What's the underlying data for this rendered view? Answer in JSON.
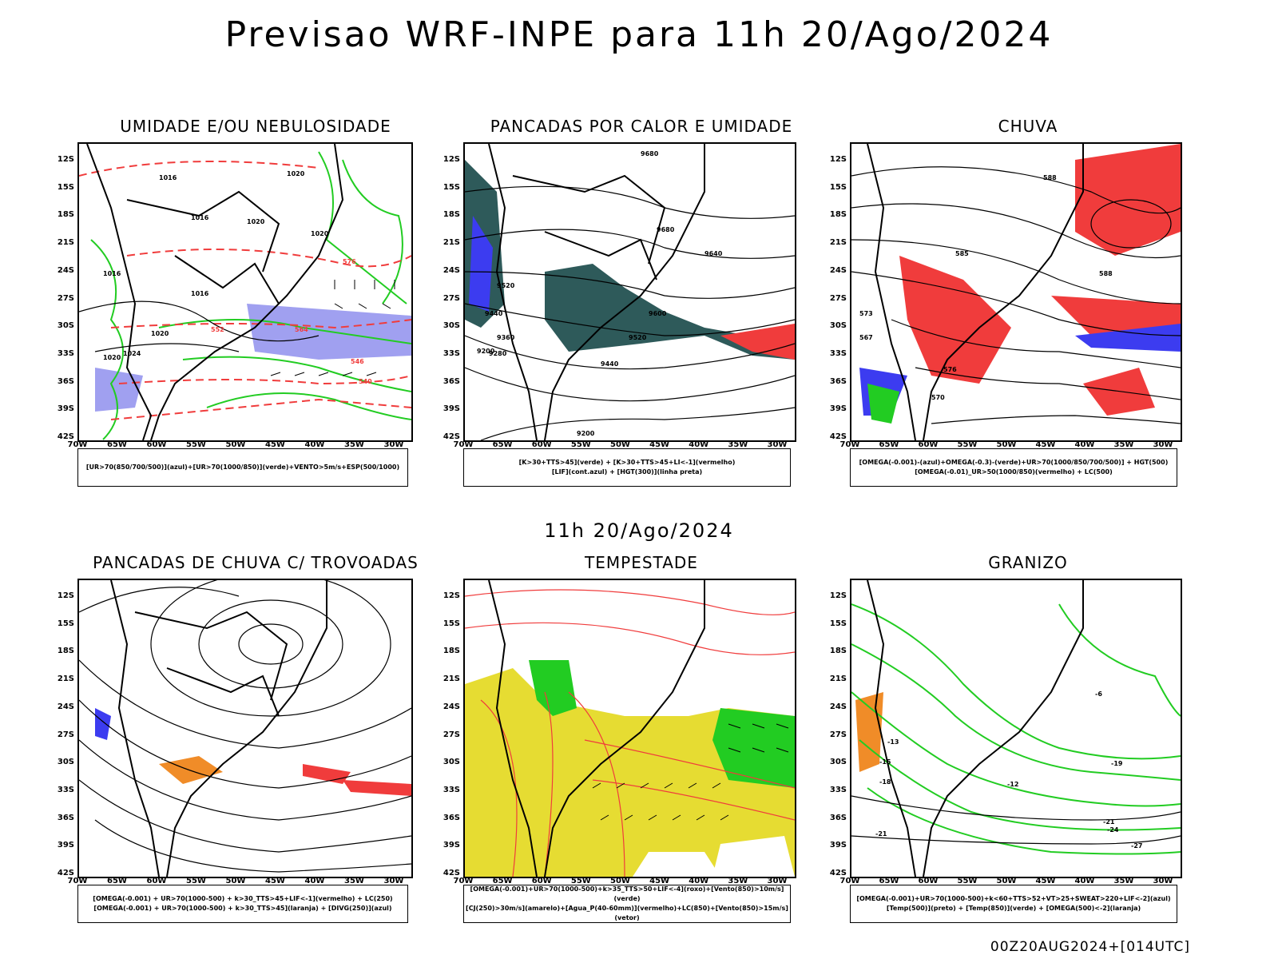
{
  "title": "Previsao WRF-INPE  para 11h 20/Ago/2024",
  "subtitle": "11h 20/Ago/2024",
  "footer": "00Z20AUG2024+[014UTC]",
  "lat_labels": [
    "12S",
    "15S",
    "18S",
    "21S",
    "24S",
    "27S",
    "30S",
    "33S",
    "36S",
    "39S",
    "42S"
  ],
  "lon_labels": [
    "70W",
    "65W",
    "60W",
    "55W",
    "50W",
    "45W",
    "40W",
    "35W",
    "30W"
  ],
  "panels": [
    {
      "title": "UMIDADE E/OU NEBULOSIDADE",
      "legend_1": "[UR>70(850/700/500)](azul)+[UR>70(1000/850)](verde)+VENTO>5m/s+ESP(500/1000)",
      "legend_2": ""
    },
    {
      "title": "PANCADAS POR CALOR E UMIDADE",
      "legend_1": "[K>30+TTS>45](verde) + [K>30+TTS>45+LI<-1](vermelho)",
      "legend_2": "[LIF](cont.azul) + [HGT(300)](linha preta)"
    },
    {
      "title": "CHUVA",
      "legend_1": "[OMEGA(-0.001)-(azul)+OMEGA(-0.3)-(verde)+UR>70(1000/850/700/500)] + HGT(500)",
      "legend_2": "[OMEGA(-0.01)_UR>50(1000/850)(vermelho) + LC(500)"
    },
    {
      "title": "PANCADAS DE CHUVA C/ TROVOADAS",
      "legend_1": "[OMEGA(-0.001) + UR>70(1000-500) + k>30_TTS>45+LIF<-1](vermelho) + LC(250)",
      "legend_2": "[OMEGA(-0.001) + UR>70(1000-500) + k>30_TTS>45](laranja) + [DIVG(250)](azul)"
    },
    {
      "title": "TEMPESTADE",
      "legend_1": "[OMEGA(-0.001)+UR>70(1000-500)+k>35_TTS>50+LIF<-4](roxo)+[Vento(850)>10m/s](verde)",
      "legend_2": "[CJ(250)>30m/s](amarelo)+[Agua_P(40-60mm)](vermelho)+LC(850)+[Vento(850)>15m/s](vetor)"
    },
    {
      "title": "GRANIZO",
      "legend_1": "[OMEGA(-0.001)+UR>70(1000-500)+k<60+TTS>52+VT>25+SWEAT>220+LIF<-2](azul)",
      "legend_2": "[Temp(500)](preto) + [Temp(850)](verde) + [OMEGA(500)<-2](laranja)"
    }
  ],
  "contour_labels": {
    "p1": [
      "1016",
      "1020",
      "1020",
      "1016",
      "1020",
      "1016",
      "1020",
      "1024",
      "1016",
      "1020",
      "576",
      "552",
      "540",
      "546",
      "564"
    ],
    "p2": [
      "9680",
      "9680",
      "9640",
      "9600",
      "9520",
      "9440",
      "9360",
      "9280",
      "9200",
      "9520",
      "9440",
      "9200"
    ],
    "p3": [
      "588",
      "585",
      "588",
      "576",
      "570",
      "573",
      "567"
    ],
    "p6": [
      "-15",
      "-18",
      "-21",
      "-12",
      "-21",
      "-24",
      "-27",
      "-19",
      "-13",
      "-6"
    ]
  },
  "colors": {
    "blue": "#3c3cf0",
    "green": "#22cc22",
    "red": "#f03c3c",
    "orange": "#f08c28",
    "yellow": "#e6dc32",
    "teal": "#2e5a5a",
    "lavender": "#a0a0f0",
    "coast": "#000000"
  }
}
